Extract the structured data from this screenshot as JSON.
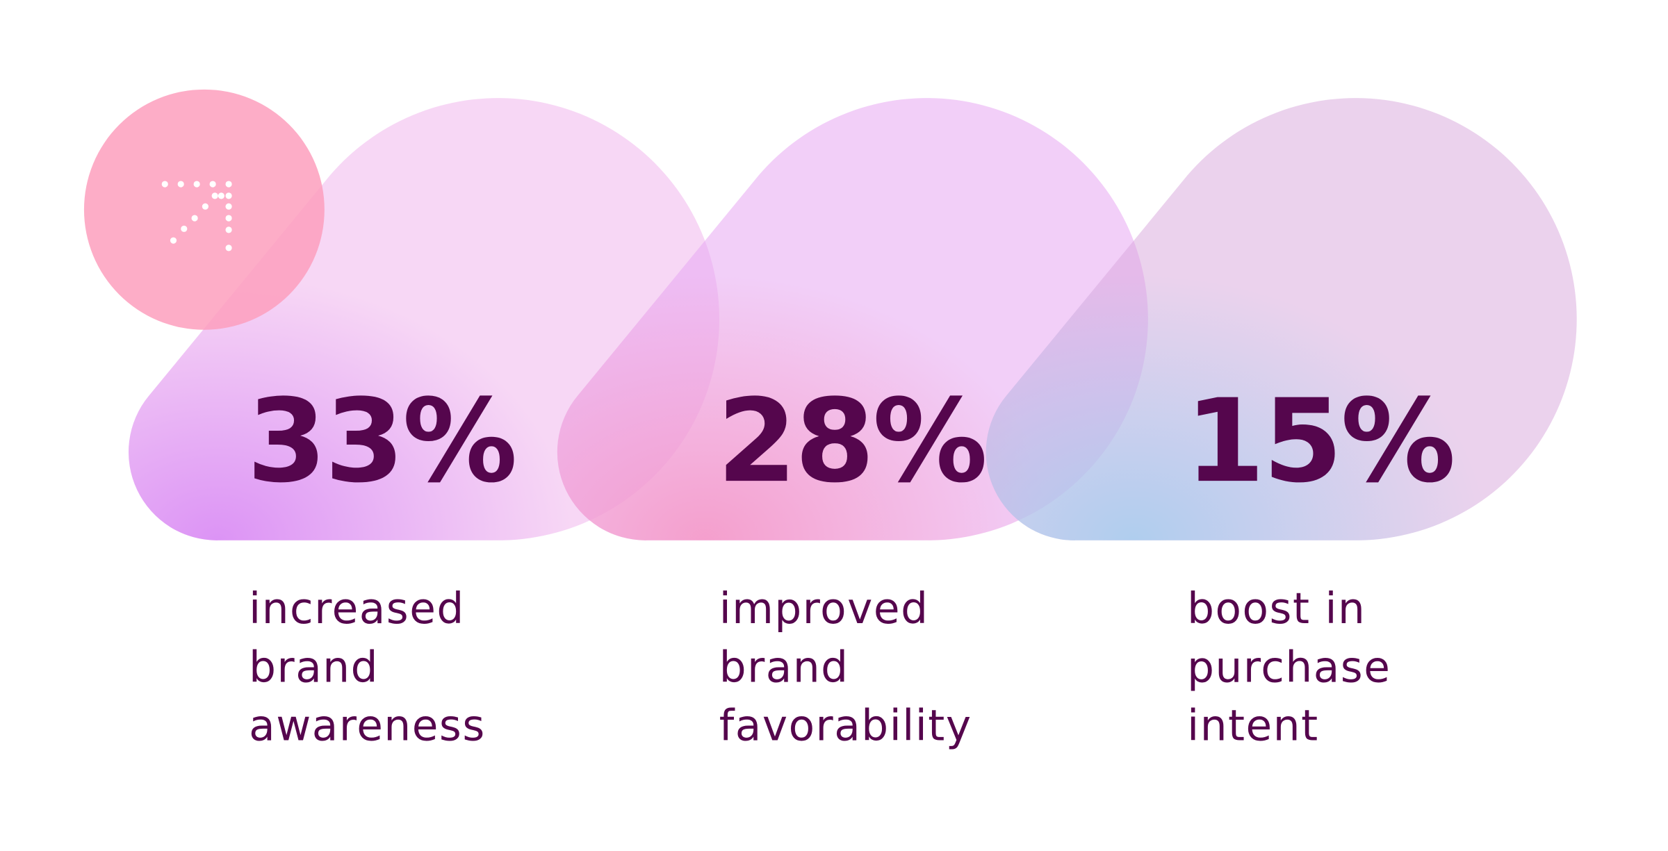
{
  "stats": [
    {
      "value": "33%",
      "lines": [
        "increased",
        "brand",
        "awareness"
      ]
    },
    {
      "value": "28%",
      "lines": [
        "improved",
        "brand",
        "favorability"
      ]
    },
    {
      "value": "15%",
      "lines": [
        "boost in",
        "purchase",
        "intent"
      ]
    }
  ]
}
